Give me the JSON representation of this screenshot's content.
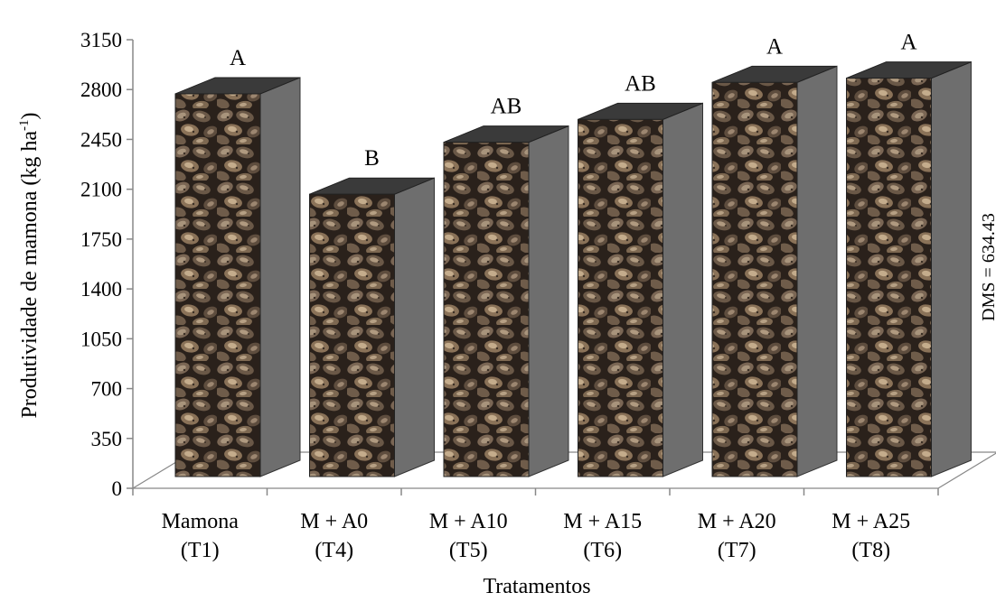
{
  "chart_data": {
    "type": "bar",
    "style": "3d",
    "categories": [
      [
        "Mamona",
        "(T1)"
      ],
      [
        "M + A0",
        "(T4)"
      ],
      [
        "M + A10",
        "(T5)"
      ],
      [
        "M + A15",
        "(T6)"
      ],
      [
        "M + A20",
        "(T7)"
      ],
      [
        "M + A25",
        "(T8)"
      ]
    ],
    "values": [
      2770,
      2065,
      2430,
      2590,
      2850,
      2880
    ],
    "letters": [
      "A",
      "B",
      "AB",
      "AB",
      "A",
      "A"
    ],
    "ylabel_main": "Produtividade de mamona (kg ha",
    "ylabel_sup": "-1",
    "ylabel_end": ")",
    "xlabel": "Tratamentos",
    "annotation": "DMS = 634.43",
    "ylim": [
      0,
      3150
    ],
    "yticks": [
      0,
      350,
      700,
      1050,
      1400,
      1750,
      2100,
      2450,
      2800,
      3150
    ],
    "grid": false,
    "colors": {
      "bar_front_pattern": "castor-bean-seeds",
      "bar_top": "#3a3a3a",
      "bar_side": "#6e6e6e",
      "axis": "#888888",
      "floor": "#ffffff"
    }
  }
}
